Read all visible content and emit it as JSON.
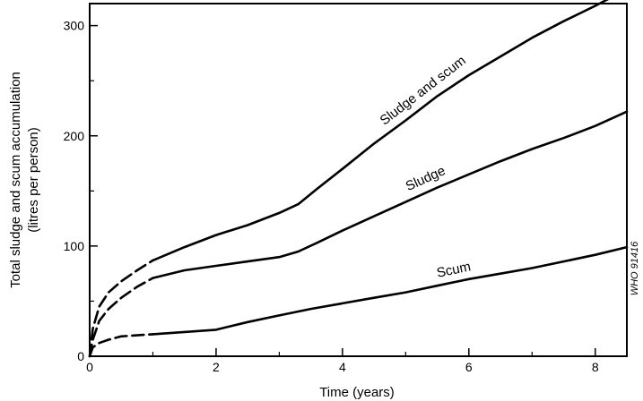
{
  "chart_data": {
    "type": "line",
    "title": "",
    "xlabel": "Time (years)",
    "ylabel_line1": "Total sludge and scum accumulation",
    "ylabel_line2": "(litres per person)",
    "xlim": [
      0,
      8.5
    ],
    "ylim": [
      0,
      320
    ],
    "xticks": [
      0,
      2,
      4,
      6,
      8
    ],
    "yticks": [
      0,
      100,
      200,
      300
    ],
    "grid": false,
    "ref_code": "WHO 91416",
    "series": [
      {
        "name": "Sludge and scum",
        "dashed_until_x": 1.0,
        "x": [
          0,
          0.05,
          0.15,
          0.3,
          0.5,
          0.75,
          1.0,
          1.5,
          2.0,
          2.5,
          3.0,
          3.3,
          3.6,
          4.0,
          4.5,
          5.0,
          5.5,
          6.0,
          6.5,
          7.0,
          7.5,
          8.0,
          8.4
        ],
        "y": [
          0,
          25,
          45,
          58,
          68,
          78,
          87,
          99,
          110,
          119,
          130,
          138,
          152,
          170,
          193,
          214,
          236,
          255,
          272,
          289,
          304,
          318,
          330
        ]
      },
      {
        "name": "Sludge",
        "dashed_until_x": 1.0,
        "x": [
          0,
          0.05,
          0.15,
          0.3,
          0.5,
          0.75,
          1.0,
          1.5,
          2.0,
          2.5,
          3.0,
          3.3,
          3.6,
          4.0,
          4.5,
          5.0,
          5.5,
          6.0,
          6.5,
          7.0,
          7.5,
          8.0,
          8.5
        ],
        "y": [
          0,
          15,
          32,
          43,
          53,
          63,
          71,
          78,
          82,
          86,
          90,
          95,
          103,
          114,
          127,
          140,
          153,
          165,
          177,
          188,
          198,
          209,
          222
        ]
      },
      {
        "name": "Scum",
        "dashed_until_x": 1.0,
        "x": [
          0,
          0.05,
          0.15,
          0.3,
          0.5,
          0.75,
          1.0,
          1.5,
          2.0,
          2.5,
          3.0,
          3.5,
          4.0,
          4.5,
          5.0,
          5.5,
          6.0,
          6.5,
          7.0,
          7.5,
          8.0,
          8.5
        ],
        "y": [
          0,
          8,
          12,
          15,
          18,
          19,
          20,
          22,
          24,
          31,
          37,
          43,
          48,
          53,
          58,
          64,
          70,
          75,
          80,
          86,
          92,
          99
        ]
      }
    ]
  }
}
